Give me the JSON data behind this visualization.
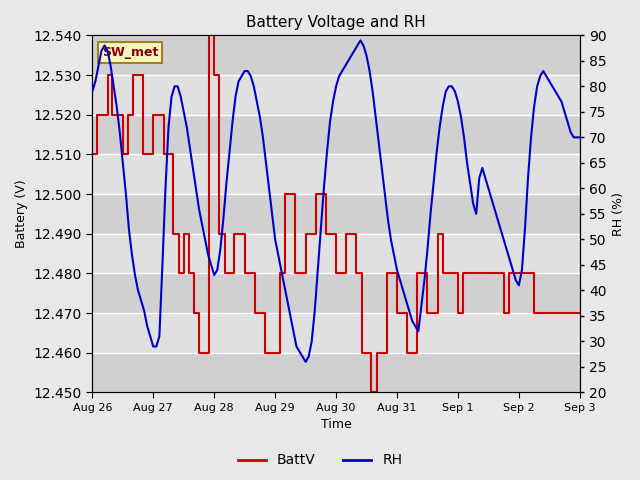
{
  "title": "Battery Voltage and RH",
  "xlabel": "Time",
  "ylabel_left": "Battery (V)",
  "ylabel_right": "RH (%)",
  "legend_label1": "BattV",
  "legend_label2": "RH",
  "station_label": "SW_met",
  "ylim_left": [
    12.45,
    12.54
  ],
  "ylim_right": [
    20,
    90
  ],
  "yticks_left": [
    12.45,
    12.46,
    12.47,
    12.48,
    12.49,
    12.5,
    12.51,
    12.52,
    12.53,
    12.54
  ],
  "yticks_right": [
    20,
    25,
    30,
    35,
    40,
    45,
    50,
    55,
    60,
    65,
    70,
    75,
    80,
    85,
    90
  ],
  "color_battv": "#cc0000",
  "color_rh": "#0000cc",
  "bg_color": "#e8e8e8",
  "plot_bg_light": "#e8e8e8",
  "plot_bg_dark": "#d0d0d0",
  "x_tick_labels": [
    "Aug 26",
    "Aug 27",
    "Aug 28",
    "Aug 29",
    "Aug 30",
    "Aug 31",
    "Sep 1",
    "Sep 2",
    "Sep 3"
  ],
  "battv_x": [
    0.0,
    0.08,
    0.08,
    0.17,
    0.17,
    0.25,
    0.25,
    0.33,
    0.33,
    0.42,
    0.42,
    0.5,
    0.5,
    0.58,
    0.58,
    0.67,
    0.67,
    0.75,
    0.75,
    0.83,
    0.83,
    0.92,
    0.92,
    1.0,
    1.0,
    1.08,
    1.08,
    1.17,
    1.17,
    1.25,
    1.25,
    1.33,
    1.33,
    1.42,
    1.42,
    1.5,
    1.5,
    1.58,
    1.58,
    1.67,
    1.67,
    1.75,
    1.75,
    1.83,
    1.83,
    1.92,
    1.92,
    2.0,
    2.0,
    2.08,
    2.08,
    2.17,
    2.17,
    2.25,
    2.25,
    2.33,
    2.33,
    2.42,
    2.42,
    2.5,
    2.5,
    2.58,
    2.58,
    2.67,
    2.67,
    2.75,
    2.75,
    2.83,
    2.83,
    2.92,
    2.92,
    3.0,
    3.0,
    3.08,
    3.08,
    3.17,
    3.17,
    3.25,
    3.25,
    3.33,
    3.33,
    3.42,
    3.42,
    3.5,
    3.5,
    3.58,
    3.58,
    3.67,
    3.67,
    3.75,
    3.75,
    3.83,
    3.83,
    3.92,
    3.92,
    4.0,
    4.0,
    4.08,
    4.08,
    4.17,
    4.17,
    4.25,
    4.25,
    4.33,
    4.33,
    4.42,
    4.42,
    4.5,
    4.5,
    4.58,
    4.58,
    4.67,
    4.67,
    4.75,
    4.75,
    4.83,
    4.83,
    4.92,
    4.92,
    5.0,
    5.0,
    5.08,
    5.08,
    5.17,
    5.17,
    5.25,
    5.25,
    5.33,
    5.33,
    5.42,
    5.42,
    5.5,
    5.5,
    5.58,
    5.58,
    5.67,
    5.67,
    5.75,
    5.75,
    5.83,
    5.83,
    5.92,
    5.92,
    6.0,
    6.0,
    6.08,
    6.08,
    6.17,
    6.17,
    6.25,
    6.25,
    6.33,
    6.33,
    6.42,
    6.42,
    6.5,
    6.5,
    6.58,
    6.58,
    6.67,
    6.67,
    6.75,
    6.75,
    6.83,
    6.83,
    6.92,
    6.92,
    7.0,
    7.0,
    7.08,
    7.08,
    7.17,
    7.17,
    7.25,
    7.25,
    7.33,
    7.33,
    7.42,
    7.42,
    7.5,
    7.5,
    7.58,
    7.58,
    7.67,
    7.67,
    7.75,
    7.75,
    7.83,
    7.83,
    7.92,
    7.92,
    8.0
  ],
  "battv_y": [
    12.51,
    12.51,
    12.52,
    12.52,
    12.52,
    12.52,
    12.53,
    12.53,
    12.52,
    12.52,
    12.52,
    12.52,
    12.51,
    12.51,
    12.52,
    12.52,
    12.53,
    12.53,
    12.53,
    12.53,
    12.51,
    12.51,
    12.51,
    12.51,
    12.52,
    12.52,
    12.52,
    12.52,
    12.51,
    12.51,
    12.51,
    12.51,
    12.49,
    12.49,
    12.48,
    12.48,
    12.49,
    12.49,
    12.48,
    12.48,
    12.47,
    12.47,
    12.46,
    12.46,
    12.46,
    12.46,
    12.54,
    12.54,
    12.53,
    12.53,
    12.49,
    12.49,
    12.48,
    12.48,
    12.48,
    12.48,
    12.49,
    12.49,
    12.49,
    12.49,
    12.48,
    12.48,
    12.48,
    12.48,
    12.47,
    12.47,
    12.47,
    12.47,
    12.46,
    12.46,
    12.46,
    12.46,
    12.46,
    12.46,
    12.48,
    12.48,
    12.5,
    12.5,
    12.5,
    12.5,
    12.48,
    12.48,
    12.48,
    12.48,
    12.49,
    12.49,
    12.49,
    12.49,
    12.5,
    12.5,
    12.5,
    12.5,
    12.49,
    12.49,
    12.49,
    12.49,
    12.48,
    12.48,
    12.48,
    12.48,
    12.49,
    12.49,
    12.49,
    12.49,
    12.48,
    12.48,
    12.46,
    12.46,
    12.46,
    12.46,
    12.45,
    12.45,
    12.46,
    12.46,
    12.46,
    12.46,
    12.48,
    12.48,
    12.48,
    12.48,
    12.47,
    12.47,
    12.47,
    12.47,
    12.46,
    12.46,
    12.46,
    12.46,
    12.48,
    12.48,
    12.48,
    12.48,
    12.47,
    12.47,
    12.47,
    12.47,
    12.49,
    12.49,
    12.48,
    12.48,
    12.48,
    12.48,
    12.48,
    12.48,
    12.47,
    12.47,
    12.48,
    12.48,
    12.48,
    12.48,
    12.48,
    12.48,
    12.48,
    12.48,
    12.48,
    12.48,
    12.48,
    12.48,
    12.48,
    12.48,
    12.48,
    12.48,
    12.47,
    12.47,
    12.48,
    12.48,
    12.48,
    12.48,
    12.48,
    12.48,
    12.48,
    12.48,
    12.48,
    12.48,
    12.47,
    12.47,
    12.47,
    12.47,
    12.47,
    12.47,
    12.47,
    12.47,
    12.47,
    12.47,
    12.47,
    12.47,
    12.47,
    12.47,
    12.47,
    12.47,
    12.47,
    12.47
  ],
  "rh_x": [
    0.0,
    0.05,
    0.1,
    0.15,
    0.2,
    0.25,
    0.3,
    0.35,
    0.4,
    0.45,
    0.5,
    0.55,
    0.6,
    0.65,
    0.7,
    0.75,
    0.8,
    0.85,
    0.9,
    0.95,
    1.0,
    1.05,
    1.1,
    1.15,
    1.2,
    1.25,
    1.3,
    1.35,
    1.4,
    1.45,
    1.5,
    1.55,
    1.6,
    1.65,
    1.7,
    1.75,
    1.8,
    1.85,
    1.9,
    1.95,
    2.0,
    2.05,
    2.1,
    2.15,
    2.2,
    2.25,
    2.3,
    2.35,
    2.4,
    2.45,
    2.5,
    2.55,
    2.6,
    2.65,
    2.7,
    2.75,
    2.8,
    2.85,
    2.9,
    2.95,
    3.0,
    3.05,
    3.1,
    3.15,
    3.2,
    3.25,
    3.3,
    3.35,
    3.4,
    3.45,
    3.5,
    3.55,
    3.6,
    3.65,
    3.7,
    3.75,
    3.8,
    3.85,
    3.9,
    3.95,
    4.0,
    4.05,
    4.1,
    4.15,
    4.2,
    4.25,
    4.3,
    4.35,
    4.4,
    4.45,
    4.5,
    4.55,
    4.6,
    4.65,
    4.7,
    4.75,
    4.8,
    4.85,
    4.9,
    4.95,
    5.0,
    5.05,
    5.1,
    5.15,
    5.2,
    5.25,
    5.3,
    5.35,
    5.4,
    5.45,
    5.5,
    5.55,
    5.6,
    5.65,
    5.7,
    5.75,
    5.8,
    5.85,
    5.9,
    5.95,
    6.0,
    6.05,
    6.1,
    6.15,
    6.2,
    6.25,
    6.3,
    6.35,
    6.4,
    6.45,
    6.5,
    6.55,
    6.6,
    6.65,
    6.7,
    6.75,
    6.8,
    6.85,
    6.9,
    6.95,
    7.0,
    7.05,
    7.1,
    7.15,
    7.2,
    7.25,
    7.3,
    7.35,
    7.4,
    7.45,
    7.5,
    7.55,
    7.6,
    7.65,
    7.7,
    7.75,
    7.8,
    7.85,
    7.9,
    7.95,
    8.0
  ],
  "rh_y": [
    79,
    81,
    84,
    87,
    88,
    87,
    84,
    80,
    76,
    71,
    65,
    59,
    52,
    47,
    43,
    40,
    38,
    36,
    33,
    31,
    29,
    29,
    31,
    45,
    60,
    72,
    78,
    80,
    80,
    78,
    75,
    72,
    68,
    64,
    60,
    56,
    53,
    50,
    47,
    45,
    43,
    44,
    48,
    54,
    61,
    67,
    73,
    78,
    81,
    82,
    83,
    83,
    82,
    80,
    77,
    74,
    70,
    65,
    60,
    55,
    50,
    47,
    44,
    41,
    38,
    35,
    32,
    29,
    28,
    27,
    26,
    27,
    30,
    36,
    44,
    52,
    60,
    67,
    73,
    77,
    80,
    82,
    83,
    84,
    85,
    86,
    87,
    88,
    89,
    88,
    86,
    83,
    79,
    74,
    69,
    64,
    59,
    54,
    50,
    47,
    44,
    42,
    40,
    38,
    36,
    34,
    33,
    32,
    37,
    42,
    48,
    55,
    61,
    67,
    72,
    76,
    79,
    80,
    80,
    79,
    77,
    74,
    70,
    65,
    61,
    57,
    55,
    62,
    64,
    62,
    60,
    58,
    56,
    54,
    52,
    50,
    48,
    46,
    44,
    42,
    41,
    44,
    52,
    62,
    70,
    76,
    80,
    82,
    83,
    82,
    81,
    80,
    79,
    78,
    77,
    75,
    73,
    71,
    70,
    70,
    70
  ]
}
